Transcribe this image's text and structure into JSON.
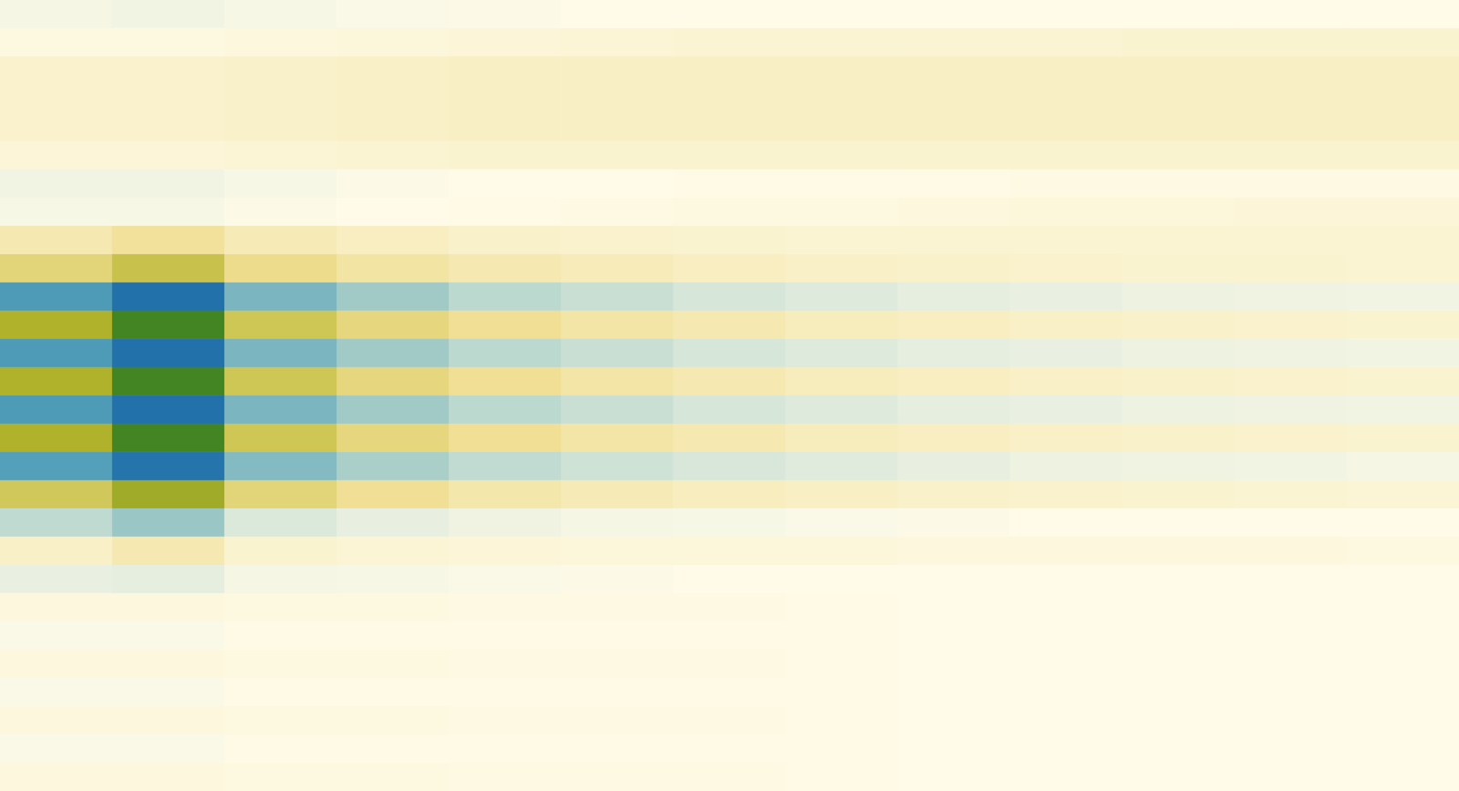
{
  "chart_data": {
    "type": "heatmap",
    "tick_labels": false,
    "grid": false,
    "value_range": [
      -1,
      1
    ],
    "values": [
      [
        -0.04,
        -0.05,
        -0.03,
        -0.02,
        -0.01,
        0,
        0,
        0,
        0,
        0,
        0,
        0,
        0
      ],
      [
        0.03,
        0.03,
        0.04,
        0.05,
        0.06,
        0.07,
        0.08,
        0.08,
        0.08,
        0.08,
        0.09,
        0.09,
        0.09
      ],
      [
        0.1,
        0.1,
        0.11,
        0.12,
        0.13,
        0.13,
        0.13,
        0.13,
        0.13,
        0.13,
        0.13,
        0.13,
        0.13
      ],
      [
        0.1,
        0.1,
        0.11,
        0.12,
        0.13,
        0.13,
        0.13,
        0.13,
        0.13,
        0.13,
        0.13,
        0.13,
        0.13
      ],
      [
        0.1,
        0.1,
        0.11,
        0.12,
        0.13,
        0.13,
        0.13,
        0.13,
        0.13,
        0.13,
        0.13,
        0.13,
        0.13
      ],
      [
        0.06,
        0.06,
        0.07,
        0.08,
        0.09,
        0.09,
        0.09,
        0.09,
        0.09,
        0.09,
        0.09,
        0.09,
        0.09
      ],
      [
        -0.05,
        -0.05,
        -0.03,
        -0.01,
        0,
        0,
        0.01,
        0.01,
        0.01,
        0.02,
        0.02,
        0.02,
        0.02
      ],
      [
        -0.03,
        -0.03,
        -0.01,
        0,
        0.01,
        0.02,
        0.03,
        0.03,
        0.04,
        0.05,
        0.05,
        0.06,
        0.06
      ],
      [
        0.2,
        0.28,
        0.18,
        0.14,
        0.11,
        0.1,
        0.09,
        0.08,
        0.08,
        0.08,
        0.08,
        0.08,
        0.08
      ],
      [
        0.4,
        0.55,
        0.33,
        0.25,
        0.2,
        0.17,
        0.14,
        0.12,
        0.11,
        0.1,
        0.09,
        0.09,
        0.08
      ],
      [
        -0.62,
        -0.92,
        -0.48,
        -0.36,
        -0.26,
        -0.21,
        -0.16,
        -0.13,
        -0.1,
        -0.08,
        -0.07,
        -0.06,
        -0.05
      ],
      [
        0.68,
        0.95,
        0.52,
        0.38,
        0.3,
        0.24,
        0.2,
        0.16,
        0.14,
        0.12,
        0.11,
        0.1,
        0.09
      ],
      [
        -0.62,
        -0.92,
        -0.48,
        -0.36,
        -0.26,
        -0.21,
        -0.16,
        -0.13,
        -0.1,
        -0.08,
        -0.07,
        -0.06,
        -0.05
      ],
      [
        0.68,
        0.95,
        0.52,
        0.38,
        0.3,
        0.24,
        0.2,
        0.16,
        0.14,
        0.12,
        0.11,
        0.1,
        0.09
      ],
      [
        -0.62,
        -0.92,
        -0.48,
        -0.36,
        -0.26,
        -0.21,
        -0.16,
        -0.13,
        -0.1,
        -0.08,
        -0.07,
        -0.06,
        -0.05
      ],
      [
        0.68,
        0.95,
        0.52,
        0.38,
        0.3,
        0.24,
        0.2,
        0.16,
        0.14,
        0.12,
        0.11,
        0.1,
        0.09
      ],
      [
        -0.6,
        -0.9,
        -0.45,
        -0.33,
        -0.24,
        -0.19,
        -0.15,
        -0.12,
        -0.09,
        -0.07,
        -0.06,
        -0.05,
        -0.04
      ],
      [
        0.5,
        0.72,
        0.4,
        0.3,
        0.22,
        0.18,
        0.15,
        0.13,
        0.11,
        0.1,
        0.09,
        0.08,
        0.07
      ],
      [
        -0.25,
        -0.38,
        -0.14,
        -0.09,
        -0.06,
        -0.04,
        -0.03,
        -0.02,
        -0.01,
        0,
        0,
        0,
        0
      ],
      [
        0.12,
        0.2,
        0.09,
        0.07,
        0.06,
        0.05,
        0.05,
        0.05,
        0.04,
        0.04,
        0.04,
        0.04,
        0.03
      ],
      [
        -0.08,
        -0.1,
        -0.04,
        -0.03,
        -0.02,
        -0.01,
        0,
        0,
        0,
        0,
        0,
        0,
        0
      ],
      [
        0.04,
        0.04,
        0.03,
        0.03,
        0.02,
        0.02,
        0.02,
        0.01,
        0,
        0,
        0,
        0,
        0
      ],
      [
        -0.02,
        -0.02,
        0.01,
        0.01,
        0.01,
        0.01,
        0.01,
        0.01,
        0,
        0,
        0,
        0,
        0
      ],
      [
        0.04,
        0.04,
        0.03,
        0.03,
        0.02,
        0.02,
        0.02,
        0.01,
        0,
        0,
        0,
        0,
        0
      ],
      [
        -0.02,
        -0.02,
        0.01,
        0.01,
        0.01,
        0.01,
        0.01,
        0.01,
        0,
        0,
        0,
        0,
        0
      ],
      [
        0.04,
        0.04,
        0.03,
        0.03,
        0.02,
        0.02,
        0.02,
        0.01,
        0,
        0,
        0,
        0,
        0
      ],
      [
        -0.02,
        -0.02,
        0.01,
        0.01,
        0.01,
        0.01,
        0.01,
        0.01,
        0,
        0,
        0,
        0,
        0
      ],
      [
        0.04,
        0.04,
        0.03,
        0.03,
        0.02,
        0.02,
        0.02,
        0.01,
        0,
        0,
        0,
        0,
        0
      ]
    ]
  }
}
